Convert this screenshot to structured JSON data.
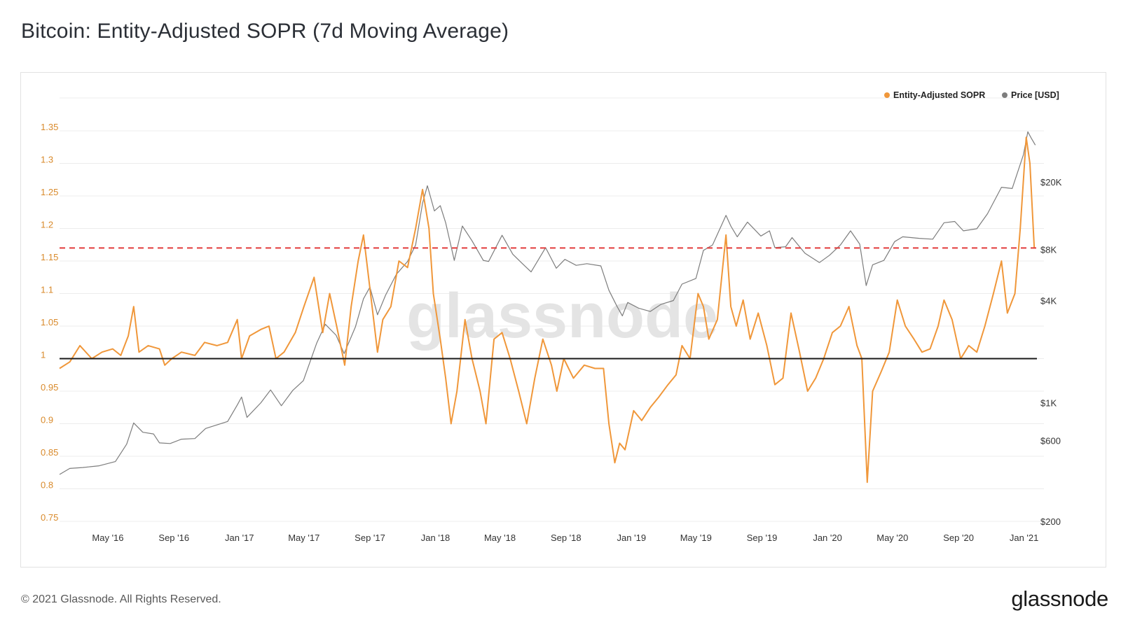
{
  "page": {
    "title": "Bitcoin: Entity-Adjusted SOPR (7d Moving Average)",
    "copyright": "© 2021 Glassnode. All Rights Reserved.",
    "brand": "glassnode",
    "watermark": "glassnode"
  },
  "colors": {
    "sopr": "#f0973a",
    "price": "#7d7d7d",
    "threshold": "#e23b3b",
    "baseline": "#1a1a1a",
    "grid": "#ececec",
    "left_axis": "#d98a2b",
    "right_axis": "#333333"
  },
  "chart_data": {
    "type": "line",
    "title": "Bitcoin: Entity-Adjusted SOPR (7d Moving Average)",
    "x_range": [
      "2016-02-01",
      "2021-01-25"
    ],
    "x_ticks": [
      {
        "date": "2016-05-01",
        "label": "May '16"
      },
      {
        "date": "2016-09-01",
        "label": "Sep '16"
      },
      {
        "date": "2017-01-01",
        "label": "Jan '17"
      },
      {
        "date": "2017-05-01",
        "label": "May '17"
      },
      {
        "date": "2017-09-01",
        "label": "Sep '17"
      },
      {
        "date": "2018-01-01",
        "label": "Jan '18"
      },
      {
        "date": "2018-05-01",
        "label": "May '18"
      },
      {
        "date": "2018-09-01",
        "label": "Sep '18"
      },
      {
        "date": "2019-01-01",
        "label": "Jan '19"
      },
      {
        "date": "2019-05-01",
        "label": "May '19"
      },
      {
        "date": "2019-09-01",
        "label": "Sep '19"
      },
      {
        "date": "2020-01-01",
        "label": "Jan '20"
      },
      {
        "date": "2020-05-01",
        "label": "May '20"
      },
      {
        "date": "2020-09-01",
        "label": "Sep '20"
      },
      {
        "date": "2021-01-01",
        "label": "Jan '21"
      }
    ],
    "y_left": {
      "label": "Entity-Adjusted SOPR",
      "ylim": [
        0.75,
        1.35
      ],
      "ticks": [
        1.35,
        1.3,
        1.25,
        1.2,
        1.15,
        1.1,
        1.05,
        1,
        0.95,
        0.9,
        0.85,
        0.8,
        0.75
      ],
      "tick_labels": [
        "1.35",
        "1.3",
        "1.25",
        "1.2",
        "1.15",
        "1.1",
        "1.05",
        "1",
        "0.95",
        "0.9",
        "0.85",
        "0.8",
        "0.75"
      ]
    },
    "y_right": {
      "label": "Price [USD]",
      "scale": "log",
      "ylim": [
        200,
        40000
      ],
      "ticks": [
        20000,
        8000,
        4000,
        1000,
        600,
        200
      ],
      "tick_labels": [
        "$20K",
        "$8K",
        "$4K",
        "$1K",
        "$600",
        "$200"
      ]
    },
    "reference_lines": [
      {
        "name": "baseline",
        "value": 1.0,
        "style": "solid"
      },
      {
        "name": "threshold",
        "value": 1.17,
        "style": "dashed"
      }
    ],
    "legend": {
      "placement": "top-right",
      "entries": [
        "Entity-Adjusted SOPR",
        "Price [USD]"
      ]
    },
    "series": [
      {
        "name": "Entity-Adjusted SOPR",
        "axis": "left",
        "points": [
          [
            "2016-02-01",
            0.985
          ],
          [
            "2016-02-20",
            0.995
          ],
          [
            "2016-03-10",
            1.02
          ],
          [
            "2016-04-01",
            1.0
          ],
          [
            "2016-04-20",
            1.01
          ],
          [
            "2016-05-10",
            1.015
          ],
          [
            "2016-05-25",
            1.005
          ],
          [
            "2016-06-08",
            1.035
          ],
          [
            "2016-06-18",
            1.08
          ],
          [
            "2016-06-28",
            1.01
          ],
          [
            "2016-07-15",
            1.02
          ],
          [
            "2016-08-05",
            1.015
          ],
          [
            "2016-08-15",
            0.99
          ],
          [
            "2016-08-28",
            1.0
          ],
          [
            "2016-09-15",
            1.01
          ],
          [
            "2016-10-10",
            1.005
          ],
          [
            "2016-10-28",
            1.025
          ],
          [
            "2016-11-20",
            1.02
          ],
          [
            "2016-12-10",
            1.025
          ],
          [
            "2016-12-28",
            1.06
          ],
          [
            "2017-01-05",
            1.0
          ],
          [
            "2017-01-20",
            1.035
          ],
          [
            "2017-02-10",
            1.045
          ],
          [
            "2017-02-25",
            1.05
          ],
          [
            "2017-03-10",
            1.0
          ],
          [
            "2017-03-25",
            1.01
          ],
          [
            "2017-04-15",
            1.04
          ],
          [
            "2017-05-01",
            1.08
          ],
          [
            "2017-05-20",
            1.125
          ],
          [
            "2017-06-05",
            1.04
          ],
          [
            "2017-06-18",
            1.1
          ],
          [
            "2017-07-01",
            1.05
          ],
          [
            "2017-07-16",
            0.99
          ],
          [
            "2017-07-28",
            1.08
          ],
          [
            "2017-08-10",
            1.15
          ],
          [
            "2017-08-20",
            1.19
          ],
          [
            "2017-09-05",
            1.08
          ],
          [
            "2017-09-15",
            1.01
          ],
          [
            "2017-09-25",
            1.06
          ],
          [
            "2017-10-10",
            1.08
          ],
          [
            "2017-10-25",
            1.15
          ],
          [
            "2017-11-10",
            1.14
          ],
          [
            "2017-11-25",
            1.2
          ],
          [
            "2017-12-08",
            1.26
          ],
          [
            "2017-12-20",
            1.2
          ],
          [
            "2017-12-28",
            1.1
          ],
          [
            "2018-01-10",
            1.03
          ],
          [
            "2018-01-20",
            0.97
          ],
          [
            "2018-01-30",
            0.9
          ],
          [
            "2018-02-10",
            0.95
          ],
          [
            "2018-02-25",
            1.06
          ],
          [
            "2018-03-10",
            1.0
          ],
          [
            "2018-03-25",
            0.95
          ],
          [
            "2018-04-05",
            0.9
          ],
          [
            "2018-04-20",
            1.03
          ],
          [
            "2018-05-05",
            1.04
          ],
          [
            "2018-05-20",
            1.0
          ],
          [
            "2018-06-05",
            0.95
          ],
          [
            "2018-06-20",
            0.9
          ],
          [
            "2018-07-05",
            0.97
          ],
          [
            "2018-07-20",
            1.03
          ],
          [
            "2018-08-05",
            0.99
          ],
          [
            "2018-08-15",
            0.95
          ],
          [
            "2018-08-28",
            1.0
          ],
          [
            "2018-09-15",
            0.97
          ],
          [
            "2018-10-05",
            0.99
          ],
          [
            "2018-10-25",
            0.985
          ],
          [
            "2018-11-10",
            0.985
          ],
          [
            "2018-11-20",
            0.9
          ],
          [
            "2018-12-01",
            0.84
          ],
          [
            "2018-12-10",
            0.87
          ],
          [
            "2018-12-20",
            0.86
          ],
          [
            "2019-01-05",
            0.92
          ],
          [
            "2019-01-20",
            0.905
          ],
          [
            "2019-02-05",
            0.925
          ],
          [
            "2019-02-20",
            0.94
          ],
          [
            "2019-03-10",
            0.96
          ],
          [
            "2019-03-25",
            0.975
          ],
          [
            "2019-04-05",
            1.02
          ],
          [
            "2019-04-20",
            1.0
          ],
          [
            "2019-05-05",
            1.1
          ],
          [
            "2019-05-15",
            1.08
          ],
          [
            "2019-05-25",
            1.03
          ],
          [
            "2019-06-10",
            1.06
          ],
          [
            "2019-06-26",
            1.19
          ],
          [
            "2019-07-05",
            1.08
          ],
          [
            "2019-07-15",
            1.05
          ],
          [
            "2019-07-28",
            1.09
          ],
          [
            "2019-08-10",
            1.03
          ],
          [
            "2019-08-25",
            1.07
          ],
          [
            "2019-09-10",
            1.02
          ],
          [
            "2019-09-25",
            0.96
          ],
          [
            "2019-10-10",
            0.97
          ],
          [
            "2019-10-25",
            1.07
          ],
          [
            "2019-11-10",
            1.01
          ],
          [
            "2019-11-25",
            0.95
          ],
          [
            "2019-12-10",
            0.97
          ],
          [
            "2019-12-25",
            1.0
          ],
          [
            "2020-01-10",
            1.04
          ],
          [
            "2020-01-25",
            1.05
          ],
          [
            "2020-02-10",
            1.08
          ],
          [
            "2020-02-25",
            1.02
          ],
          [
            "2020-03-05",
            1.0
          ],
          [
            "2020-03-15",
            0.81
          ],
          [
            "2020-03-25",
            0.95
          ],
          [
            "2020-04-10",
            0.98
          ],
          [
            "2020-04-25",
            1.01
          ],
          [
            "2020-05-10",
            1.09
          ],
          [
            "2020-05-25",
            1.05
          ],
          [
            "2020-06-10",
            1.03
          ],
          [
            "2020-06-25",
            1.01
          ],
          [
            "2020-07-10",
            1.015
          ],
          [
            "2020-07-25",
            1.05
          ],
          [
            "2020-08-05",
            1.09
          ],
          [
            "2020-08-20",
            1.06
          ],
          [
            "2020-09-05",
            1.0
          ],
          [
            "2020-09-20",
            1.02
          ],
          [
            "2020-10-05",
            1.01
          ],
          [
            "2020-10-20",
            1.05
          ],
          [
            "2020-11-05",
            1.1
          ],
          [
            "2020-11-20",
            1.15
          ],
          [
            "2020-12-01",
            1.07
          ],
          [
            "2020-12-15",
            1.1
          ],
          [
            "2020-12-25",
            1.2
          ],
          [
            "2021-01-05",
            1.34
          ],
          [
            "2021-01-12",
            1.3
          ],
          [
            "2021-01-20",
            1.17
          ]
        ]
      },
      {
        "name": "Price [USD]",
        "axis": "right",
        "points": [
          [
            "2016-02-01",
            378
          ],
          [
            "2016-02-20",
            410
          ],
          [
            "2016-03-15",
            415
          ],
          [
            "2016-04-15",
            425
          ],
          [
            "2016-05-15",
            450
          ],
          [
            "2016-06-05",
            570
          ],
          [
            "2016-06-18",
            760
          ],
          [
            "2016-07-05",
            670
          ],
          [
            "2016-07-25",
            655
          ],
          [
            "2016-08-05",
            580
          ],
          [
            "2016-08-25",
            575
          ],
          [
            "2016-09-15",
            610
          ],
          [
            "2016-10-10",
            615
          ],
          [
            "2016-10-30",
            705
          ],
          [
            "2016-11-20",
            740
          ],
          [
            "2016-12-10",
            775
          ],
          [
            "2016-12-28",
            970
          ],
          [
            "2017-01-05",
            1080
          ],
          [
            "2017-01-15",
            820
          ],
          [
            "2017-02-10",
            1000
          ],
          [
            "2017-02-28",
            1190
          ],
          [
            "2017-03-20",
            960
          ],
          [
            "2017-04-10",
            1180
          ],
          [
            "2017-04-30",
            1350
          ],
          [
            "2017-05-25",
            2250
          ],
          [
            "2017-06-10",
            2900
          ],
          [
            "2017-06-30",
            2500
          ],
          [
            "2017-07-15",
            1950
          ],
          [
            "2017-08-05",
            2800
          ],
          [
            "2017-08-20",
            4100
          ],
          [
            "2017-09-01",
            4800
          ],
          [
            "2017-09-15",
            3300
          ],
          [
            "2017-09-30",
            4300
          ],
          [
            "2017-10-20",
            5700
          ],
          [
            "2017-11-10",
            6800
          ],
          [
            "2017-11-25",
            8500
          ],
          [
            "2017-12-08",
            15000
          ],
          [
            "2017-12-17",
            19000
          ],
          [
            "2017-12-30",
            13500
          ],
          [
            "2018-01-10",
            14500
          ],
          [
            "2018-01-20",
            11500
          ],
          [
            "2018-02-05",
            6900
          ],
          [
            "2018-02-20",
            11000
          ],
          [
            "2018-03-10",
            9000
          ],
          [
            "2018-03-31",
            6900
          ],
          [
            "2018-04-10",
            6800
          ],
          [
            "2018-05-05",
            9700
          ],
          [
            "2018-05-25",
            7500
          ],
          [
            "2018-06-12",
            6600
          ],
          [
            "2018-06-28",
            5900
          ],
          [
            "2018-07-25",
            8200
          ],
          [
            "2018-08-14",
            6200
          ],
          [
            "2018-08-30",
            7000
          ],
          [
            "2018-09-20",
            6450
          ],
          [
            "2018-10-10",
            6600
          ],
          [
            "2018-11-05",
            6400
          ],
          [
            "2018-11-20",
            4600
          ],
          [
            "2018-12-05",
            3700
          ],
          [
            "2018-12-15",
            3250
          ],
          [
            "2018-12-25",
            3900
          ],
          [
            "2019-01-15",
            3600
          ],
          [
            "2019-02-05",
            3450
          ],
          [
            "2019-02-25",
            3800
          ],
          [
            "2019-03-20",
            4000
          ],
          [
            "2019-04-05",
            5000
          ],
          [
            "2019-05-01",
            5400
          ],
          [
            "2019-05-15",
            7900
          ],
          [
            "2019-06-01",
            8500
          ],
          [
            "2019-06-26",
            12700
          ],
          [
            "2019-07-05",
            11000
          ],
          [
            "2019-07-17",
            9500
          ],
          [
            "2019-08-05",
            11600
          ],
          [
            "2019-08-30",
            9600
          ],
          [
            "2019-09-15",
            10300
          ],
          [
            "2019-09-25",
            8200
          ],
          [
            "2019-10-15",
            8300
          ],
          [
            "2019-10-27",
            9400
          ],
          [
            "2019-11-20",
            7600
          ],
          [
            "2019-12-17",
            6700
          ],
          [
            "2020-01-05",
            7400
          ],
          [
            "2020-01-25",
            8500
          ],
          [
            "2020-02-13",
            10300
          ],
          [
            "2020-03-01",
            8600
          ],
          [
            "2020-03-13",
            4900
          ],
          [
            "2020-03-25",
            6500
          ],
          [
            "2020-04-15",
            6900
          ],
          [
            "2020-05-05",
            8900
          ],
          [
            "2020-05-20",
            9500
          ],
          [
            "2020-06-20",
            9300
          ],
          [
            "2020-07-15",
            9200
          ],
          [
            "2020-08-05",
            11500
          ],
          [
            "2020-08-25",
            11700
          ],
          [
            "2020-09-10",
            10300
          ],
          [
            "2020-10-05",
            10600
          ],
          [
            "2020-10-25",
            13000
          ],
          [
            "2020-11-20",
            18600
          ],
          [
            "2020-12-10",
            18300
          ],
          [
            "2020-12-31",
            29000
          ],
          [
            "2021-01-08",
            39500
          ],
          [
            "2021-01-15",
            36000
          ],
          [
            "2021-01-22",
            33000
          ]
        ]
      }
    ]
  }
}
